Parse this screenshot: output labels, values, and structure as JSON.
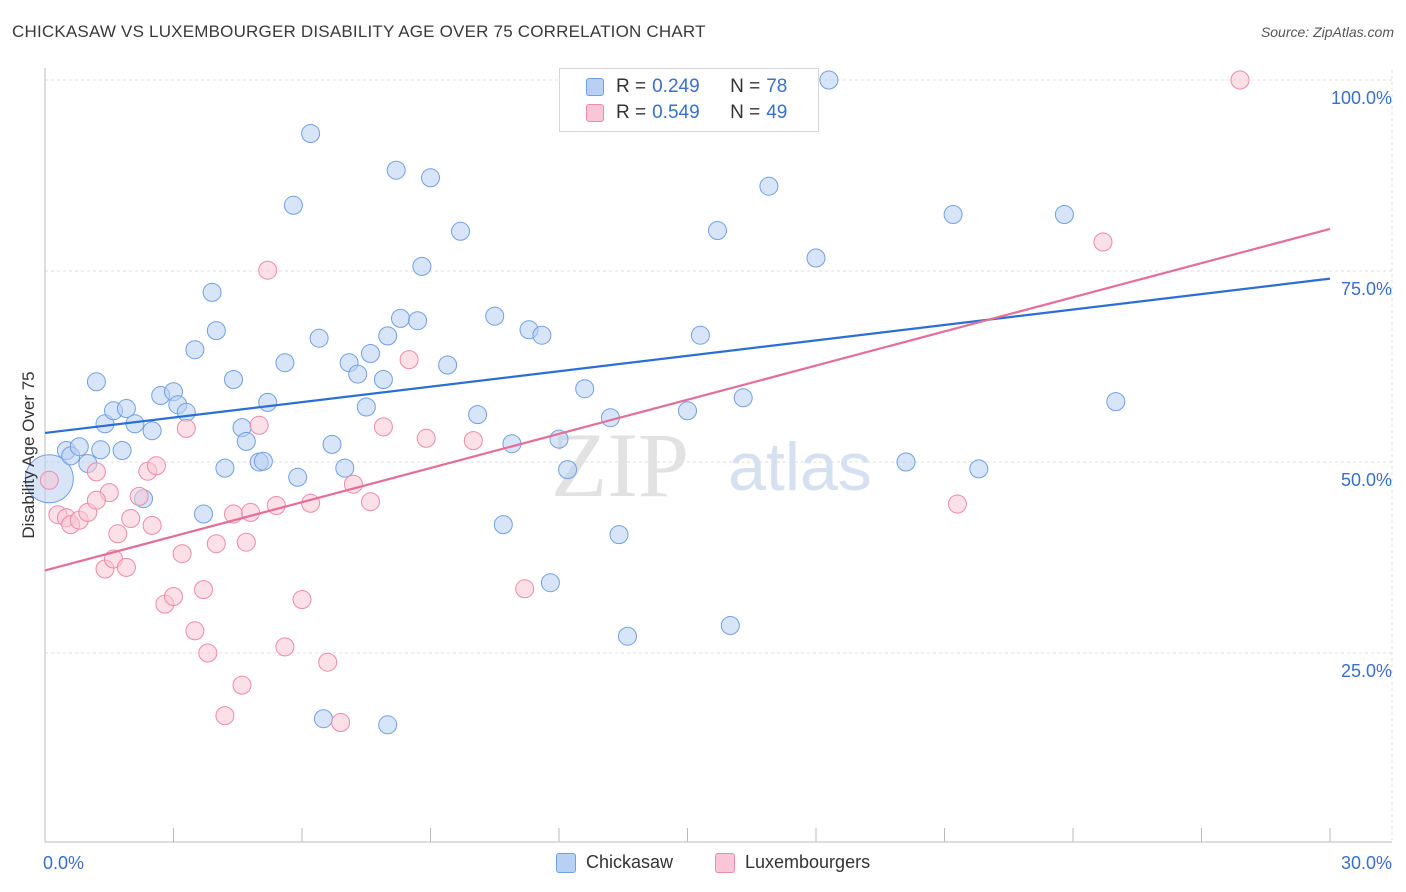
{
  "title": "CHICKASAW VS LUXEMBOURGER DISABILITY AGE OVER 75 CORRELATION CHART",
  "source": "Source: ZipAtlas.com",
  "watermark": {
    "zip": "ZIP",
    "atlas": "atlas"
  },
  "legend": {
    "rows": [
      {
        "r_label": "R =",
        "r_value": "0.249",
        "n_label": "N =",
        "n_value": "78",
        "color": "#6fa0e6",
        "fill": "#b8d0f2"
      },
      {
        "r_label": "R =",
        "r_value": "0.549",
        "n_label": "N =",
        "n_value": "49",
        "color": "#ee8aaa",
        "fill": "#f8c6d6"
      }
    ]
  },
  "chart_data": {
    "type": "scatter",
    "title": "CHICKASAW VS LUXEMBOURGER DISABILITY AGE OVER 75 CORRELATION CHART",
    "xlabel": "",
    "ylabel": "Disability Age Over 75",
    "xlim": [
      0,
      30
    ],
    "ylim": [
      5,
      103
    ],
    "x_tick_labels": [
      "0.0%",
      "30.0%"
    ],
    "y_ticks": [
      25,
      50,
      75,
      100
    ],
    "y_tick_labels": [
      "25.0%",
      "50.0%",
      "75.0%",
      "100.0%"
    ],
    "grid": true,
    "legend_placement": "top-center",
    "series": [
      {
        "name": "Chickasaw",
        "color": "#6fa0e6",
        "fill": "#b8d0f2",
        "trend": {
          "x": [
            0,
            30
          ],
          "y": [
            53.8,
            74.0
          ],
          "color": "#2a6fd1"
        },
        "points": [
          [
            0.1,
            47.8
          ],
          [
            0.5,
            51.5
          ],
          [
            0.6,
            50.8
          ],
          [
            0.8,
            52.0
          ],
          [
            1.0,
            49.8
          ],
          [
            1.2,
            60.5
          ],
          [
            1.4,
            55.0
          ],
          [
            1.6,
            56.7
          ],
          [
            1.8,
            51.5
          ],
          [
            1.9,
            57.0
          ],
          [
            2.1,
            55.0
          ],
          [
            2.3,
            45.2
          ],
          [
            2.5,
            54.1
          ],
          [
            2.7,
            58.7
          ],
          [
            3.0,
            59.2
          ],
          [
            3.1,
            57.5
          ],
          [
            3.3,
            56.5
          ],
          [
            3.5,
            64.7
          ],
          [
            3.7,
            43.2
          ],
          [
            3.9,
            72.2
          ],
          [
            4.0,
            67.2
          ],
          [
            4.2,
            49.2
          ],
          [
            4.4,
            60.8
          ],
          [
            4.6,
            54.5
          ],
          [
            4.7,
            52.7
          ],
          [
            5.0,
            50.0
          ],
          [
            5.1,
            50.1
          ],
          [
            5.2,
            57.8
          ],
          [
            5.6,
            63.0
          ],
          [
            5.8,
            83.6
          ],
          [
            5.9,
            48.0
          ],
          [
            6.2,
            93.0
          ],
          [
            6.4,
            66.2
          ],
          [
            6.7,
            52.3
          ],
          [
            7.0,
            49.2
          ],
          [
            7.1,
            63.0
          ],
          [
            7.3,
            61.5
          ],
          [
            7.5,
            57.2
          ],
          [
            7.6,
            64.2
          ],
          [
            7.9,
            60.8
          ],
          [
            8.0,
            66.5
          ],
          [
            8.2,
            88.2
          ],
          [
            8.3,
            68.8
          ],
          [
            8.7,
            68.5
          ],
          [
            8.8,
            75.6
          ],
          [
            9.0,
            87.2
          ],
          [
            9.4,
            62.7
          ],
          [
            9.7,
            80.2
          ],
          [
            10.1,
            56.2
          ],
          [
            10.5,
            69.1
          ],
          [
            10.7,
            41.8
          ],
          [
            10.9,
            52.4
          ],
          [
            11.3,
            67.3
          ],
          [
            11.6,
            66.6
          ],
          [
            11.8,
            34.2
          ],
          [
            12.0,
            53.0
          ],
          [
            12.2,
            49.0
          ],
          [
            12.6,
            59.6
          ],
          [
            13.2,
            55.8
          ],
          [
            13.4,
            40.5
          ],
          [
            13.6,
            27.2
          ],
          [
            15.0,
            56.7
          ],
          [
            15.3,
            66.6
          ],
          [
            15.7,
            80.3
          ],
          [
            16.0,
            28.6
          ],
          [
            16.3,
            58.4
          ],
          [
            16.9,
            86.1
          ],
          [
            17.1,
            99.8
          ],
          [
            18.0,
            76.7
          ],
          [
            18.3,
            100.0
          ],
          [
            20.1,
            50.0
          ],
          [
            21.2,
            82.4
          ],
          [
            21.8,
            49.1
          ],
          [
            23.8,
            82.4
          ],
          [
            25.0,
            57.9
          ],
          [
            6.5,
            16.4
          ],
          [
            8.0,
            15.6
          ],
          [
            1.3,
            51.6
          ]
        ]
      },
      {
        "name": "Luxembourgers",
        "color": "#ee8aaa",
        "fill": "#f8c6d6",
        "trend": {
          "x": [
            0,
            30
          ],
          "y": [
            35.8,
            80.5
          ],
          "color": "#e3709a"
        },
        "points": [
          [
            0.1,
            47.6
          ],
          [
            0.3,
            43.1
          ],
          [
            0.5,
            42.7
          ],
          [
            0.6,
            41.8
          ],
          [
            0.8,
            42.4
          ],
          [
            1.0,
            43.4
          ],
          [
            1.2,
            48.7
          ],
          [
            1.4,
            36.0
          ],
          [
            1.5,
            46.0
          ],
          [
            1.6,
            37.3
          ],
          [
            1.7,
            40.6
          ],
          [
            1.9,
            36.2
          ],
          [
            2.0,
            42.6
          ],
          [
            2.2,
            45.5
          ],
          [
            2.4,
            48.8
          ],
          [
            2.5,
            41.7
          ],
          [
            2.6,
            49.5
          ],
          [
            2.8,
            31.4
          ],
          [
            3.0,
            32.4
          ],
          [
            3.2,
            38.0
          ],
          [
            3.3,
            54.4
          ],
          [
            3.5,
            27.9
          ],
          [
            3.7,
            33.3
          ],
          [
            3.8,
            25.0
          ],
          [
            4.0,
            39.3
          ],
          [
            4.2,
            16.8
          ],
          [
            4.4,
            43.2
          ],
          [
            4.6,
            20.8
          ],
          [
            4.7,
            39.5
          ],
          [
            4.8,
            43.4
          ],
          [
            5.0,
            54.8
          ],
          [
            5.2,
            75.1
          ],
          [
            5.4,
            44.3
          ],
          [
            5.6,
            25.8
          ],
          [
            6.0,
            32.0
          ],
          [
            6.2,
            44.6
          ],
          [
            6.6,
            23.8
          ],
          [
            6.9,
            15.9
          ],
          [
            7.2,
            47.1
          ],
          [
            7.6,
            44.8
          ],
          [
            7.9,
            54.6
          ],
          [
            8.5,
            63.4
          ],
          [
            8.9,
            53.1
          ],
          [
            10.0,
            52.8
          ],
          [
            11.2,
            33.4
          ],
          [
            21.3,
            44.5
          ],
          [
            24.7,
            78.8
          ],
          [
            27.9,
            100.0
          ],
          [
            1.2,
            45.0
          ]
        ]
      }
    ]
  },
  "bottom_legend": [
    "Chickasaw",
    "Luxembourgers"
  ]
}
